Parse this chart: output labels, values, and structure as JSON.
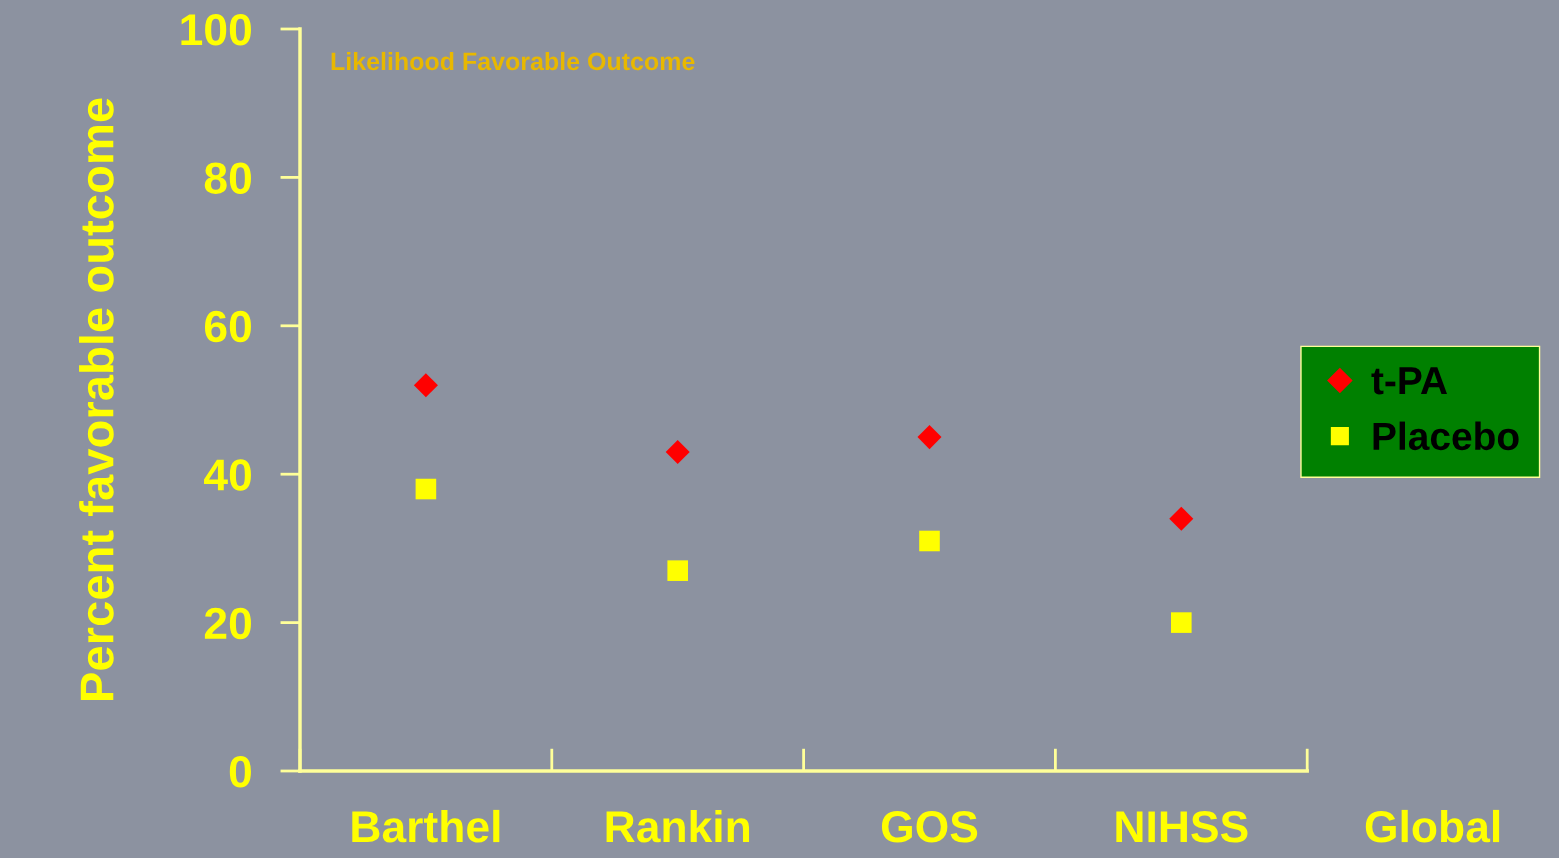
{
  "chart_data": {
    "type": "scatter",
    "ylabel": "Percent favorable outcome",
    "annotations": [
      "Likelihood Favorable Outcome"
    ],
    "categories": [
      "Barthel",
      "Rankin",
      "GOS",
      "NIHSS",
      "Global"
    ],
    "series": [
      {
        "name": "t-PA",
        "color": "#ff0000",
        "marker": "diamond",
        "values": [
          52,
          43,
          45,
          34,
          null
        ]
      },
      {
        "name": "Placebo",
        "color": "#ffff00",
        "marker": "square",
        "values": [
          38,
          27,
          31,
          20,
          null
        ]
      }
    ],
    "ylim": [
      0,
      100
    ],
    "yticks": [
      0,
      20,
      40,
      60,
      80,
      100
    ],
    "grid": false,
    "legend": "right"
  }
}
